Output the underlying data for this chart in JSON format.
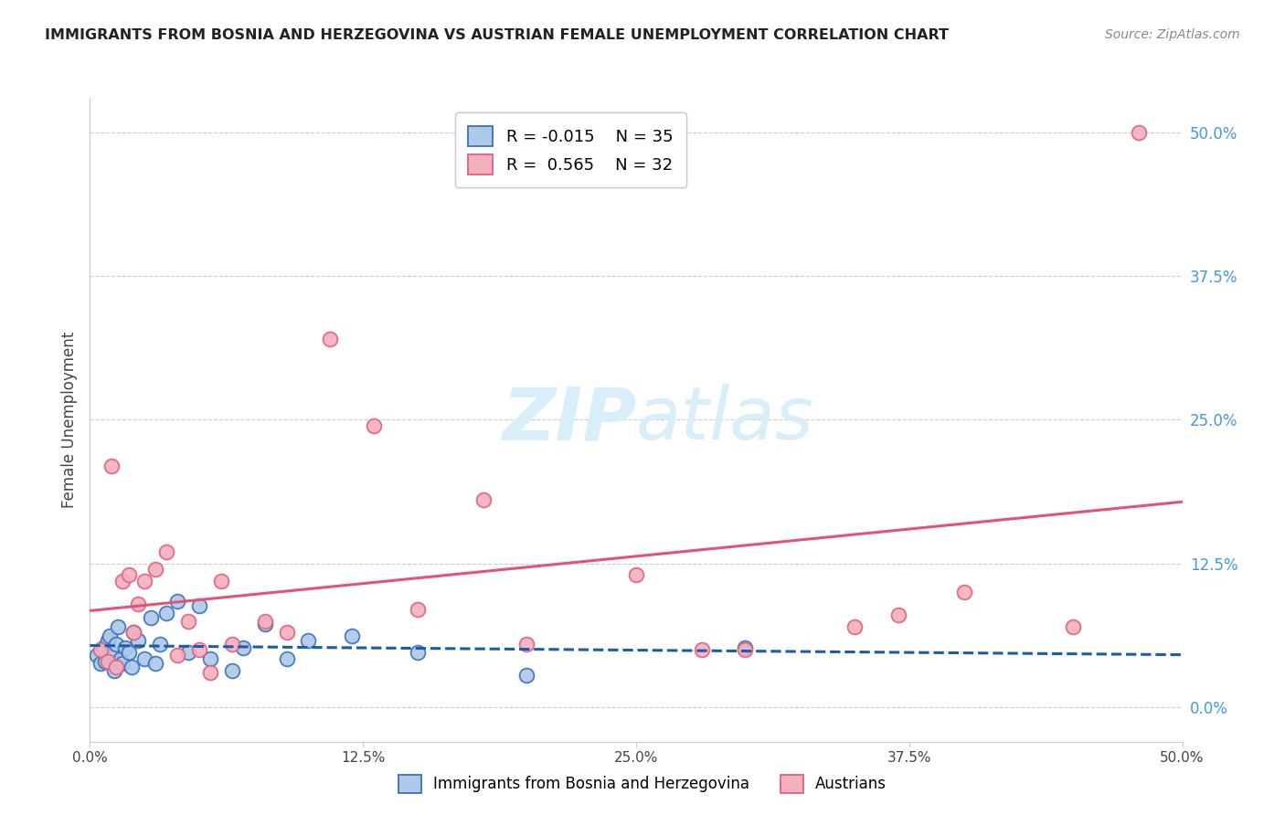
{
  "title": "IMMIGRANTS FROM BOSNIA AND HERZEGOVINA VS AUSTRIAN FEMALE UNEMPLOYMENT CORRELATION CHART",
  "source": "Source: ZipAtlas.com",
  "ylabel": "Female Unemployment",
  "ytick_values": [
    0.0,
    12.5,
    25.0,
    37.5,
    50.0
  ],
  "xtick_values": [
    0.0,
    12.5,
    25.0,
    37.5,
    50.0
  ],
  "xlim": [
    0.0,
    50.0
  ],
  "ylim": [
    -3.0,
    53.0
  ],
  "blue_r": -0.015,
  "blue_n": 35,
  "pink_r": 0.565,
  "pink_n": 32,
  "blue_face_color": "#adc8e8",
  "pink_face_color": "#f4b0be",
  "blue_edge_color": "#3a72b8",
  "pink_edge_color": "#e06080",
  "blue_line_color": "#1a5ca8",
  "pink_line_color": "#e05575",
  "watermark_color": "#d8eef8",
  "right_tick_color": "#4499dd",
  "grid_color": "#cccccc",
  "title_color": "#222222",
  "source_color": "#888888",
  "blue_scatter_x": [
    0.3,
    0.5,
    0.6,
    0.7,
    0.8,
    0.9,
    1.0,
    1.1,
    1.2,
    1.3,
    1.4,
    1.5,
    1.6,
    1.8,
    1.9,
    2.0,
    2.2,
    2.5,
    2.8,
    3.0,
    3.2,
    3.5,
    4.0,
    4.5,
    5.0,
    5.5,
    6.5,
    7.0,
    8.0,
    9.0,
    10.0,
    12.0,
    15.0,
    20.0,
    30.0
  ],
  "blue_scatter_y": [
    4.5,
    3.8,
    5.2,
    4.0,
    5.8,
    6.2,
    4.8,
    3.2,
    5.5,
    7.0,
    4.2,
    3.8,
    5.2,
    4.8,
    3.5,
    6.5,
    5.8,
    4.2,
    7.8,
    3.8,
    5.5,
    8.2,
    9.2,
    4.8,
    8.8,
    4.2,
    3.2,
    5.2,
    7.2,
    4.2,
    5.8,
    6.2,
    4.8,
    2.8,
    5.2
  ],
  "pink_scatter_x": [
    0.5,
    0.8,
    1.0,
    1.2,
    1.5,
    1.8,
    2.0,
    2.2,
    2.5,
    3.0,
    3.5,
    4.0,
    4.5,
    5.0,
    5.5,
    6.0,
    6.5,
    8.0,
    9.0,
    11.0,
    13.0,
    15.0,
    18.0,
    20.0,
    25.0,
    28.0,
    30.0,
    35.0,
    37.0,
    40.0,
    45.0,
    48.0
  ],
  "pink_scatter_y": [
    5.0,
    4.0,
    21.0,
    3.5,
    11.0,
    11.5,
    6.5,
    9.0,
    11.0,
    12.0,
    13.5,
    4.5,
    7.5,
    5.0,
    3.0,
    11.0,
    5.5,
    7.5,
    6.5,
    32.0,
    24.5,
    8.5,
    18.0,
    5.5,
    11.5,
    5.0,
    5.0,
    7.0,
    8.0,
    10.0,
    7.0,
    50.0
  ],
  "legend_label_blue": "Immigrants from Bosnia and Herzegovina",
  "legend_label_pink": "Austrians"
}
